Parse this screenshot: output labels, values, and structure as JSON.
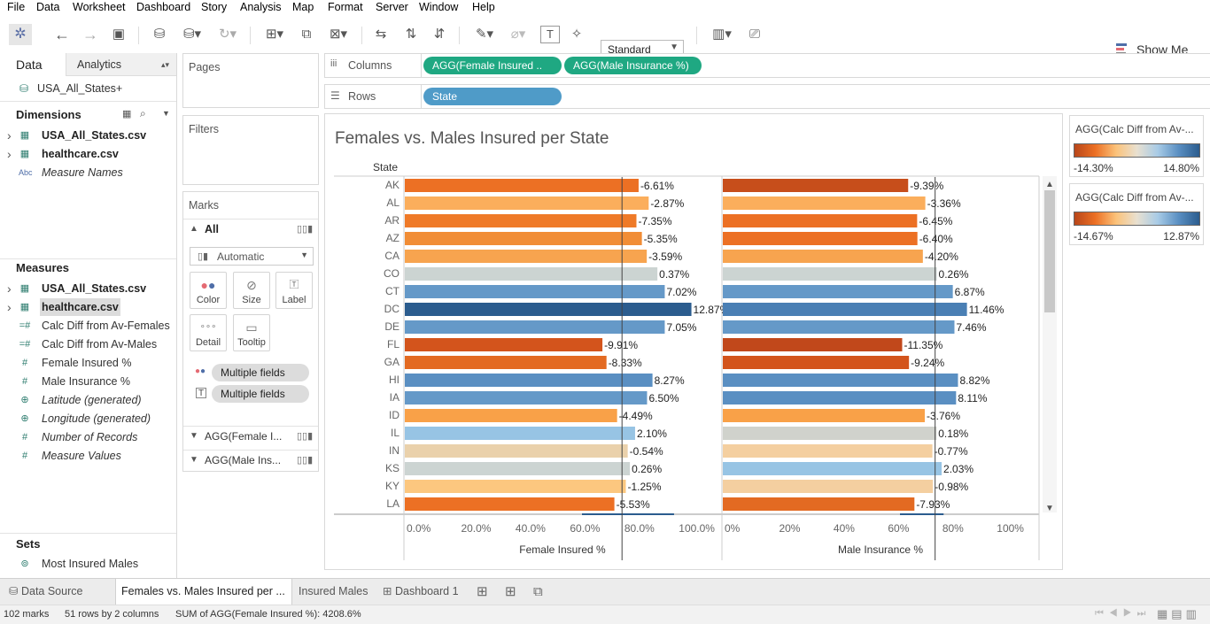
{
  "menu": [
    "File",
    "Data",
    "Worksheet",
    "Dashboard",
    "Story",
    "Analysis",
    "Map",
    "Format",
    "Server",
    "Window",
    "Help"
  ],
  "toolbar": {
    "fit_mode": "Standard",
    "show_me": "Show Me"
  },
  "sidebar": {
    "tab_data": "Data",
    "tab_analytics": "Analytics",
    "datasource": "USA_All_States+",
    "dimensions_title": "Dimensions",
    "dimensions": [
      {
        "label": "USA_All_States.csv",
        "icon": "table-icon",
        "bold": true
      },
      {
        "label": "healthcare.csv",
        "icon": "table-icon",
        "bold": true
      },
      {
        "label": "Measure Names",
        "icon": "abc-icon",
        "italic": true
      }
    ],
    "measures_title": "Measures",
    "measures": [
      {
        "label": "USA_All_States.csv",
        "icon": "table-icon",
        "bold": true
      },
      {
        "label": "healthcare.csv",
        "icon": "table-icon",
        "bold": true,
        "highlight": true
      },
      {
        "label": "Calc Diff from Av-Females",
        "icon": "calc-measure-icon"
      },
      {
        "label": "Calc Diff from Av-Males",
        "icon": "calc-measure-icon"
      },
      {
        "label": "Female Insured %",
        "icon": "measure-icon"
      },
      {
        "label": "Male Insurance %",
        "icon": "measure-icon"
      },
      {
        "label": "Latitude (generated)",
        "icon": "globe-icon",
        "italic": true
      },
      {
        "label": "Longitude (generated)",
        "icon": "globe-icon",
        "italic": true
      },
      {
        "label": "Number of Records",
        "icon": "measure-icon",
        "italic": true
      },
      {
        "label": "Measure Values",
        "icon": "measure-icon",
        "italic": true
      }
    ],
    "sets_title": "Sets",
    "sets": [
      {
        "label": "Most Insured Males",
        "icon": "set-icon"
      }
    ]
  },
  "pages_title": "Pages",
  "filters_title": "Filters",
  "marks": {
    "title": "Marks",
    "all_label": "All",
    "mark_type": "Automatic",
    "buttons": [
      "Color",
      "Size",
      "Label",
      "Detail",
      "Tooltip"
    ],
    "pills": [
      "Multiple fields",
      "Multiple fields"
    ],
    "sub_cards": [
      "AGG(Female I...",
      "AGG(Male Ins..."
    ]
  },
  "shelves": {
    "columns_label": "Columns",
    "rows_label": "Rows",
    "columns": [
      "AGG(Female Insured ..",
      "AGG(Male Insurance %)"
    ],
    "rows": [
      "State"
    ]
  },
  "legends": [
    {
      "title": "AGG(Calc Diff from Av-...",
      "min": "-14.30%",
      "max": "14.80%"
    },
    {
      "title": "AGG(Calc Diff from Av-...",
      "min": "-14.67%",
      "max": "12.87%"
    }
  ],
  "chart_data": {
    "type": "bar",
    "title": "Females vs. Males Insured per State",
    "row_header": "State",
    "categories": [
      "AK",
      "AL",
      "AR",
      "AZ",
      "CA",
      "CO",
      "CT",
      "DC",
      "DE",
      "FL",
      "GA",
      "HI",
      "IA",
      "ID",
      "IL",
      "IN",
      "KS",
      "KY",
      "LA"
    ],
    "series": [
      {
        "name": "Female Insured %",
        "values": [
          85.9,
          89.6,
          85.1,
          87.1,
          88.9,
          92.8,
          95.5,
          105.3,
          95.5,
          72.6,
          74.1,
          91.0,
          89.0,
          78.0,
          84.6,
          81.9,
          82.7,
          81.2,
          77.0
        ],
        "labels": [
          "-6.61%",
          "-2.87%",
          "-7.35%",
          "-5.35%",
          "-3.59%",
          "0.37%",
          "7.02%",
          "12.87%",
          "7.05%",
          "-9.91%",
          "-8.33%",
          "8.27%",
          "6.50%",
          "-4.49%",
          "2.10%",
          "-0.54%",
          "0.26%",
          "-1.25%",
          "-5.53%"
        ],
        "colors": [
          "#ec7024",
          "#fbae5c",
          "#ef7a28",
          "#f18d36",
          "#f7a44f",
          "#ccd4d2",
          "#6599c8",
          "#2b5c8e",
          "#6599c8",
          "#d3541c",
          "#e36a22",
          "#5a8fc2",
          "#6599c8",
          "#f9a148",
          "#97c4e4",
          "#ead1ab",
          "#ccd4d2",
          "#fcc77f",
          "#ec7024"
        ]
      },
      {
        "name": "Male Insurance %",
        "values": [
          68.1,
          74.4,
          71.4,
          71.5,
          73.5,
          78.6,
          84.5,
          89.7,
          85.1,
          65.9,
          68.4,
          86.4,
          85.7,
          74.2,
          78.5,
          77.0,
          80.4,
          77.2,
          70.4
        ],
        "labels": [
          "-9.39%",
          "-3.36%",
          "-6.45%",
          "-6.40%",
          "-4.20%",
          "0.26%",
          "6.87%",
          "11.46%",
          "7.46%",
          "-11.35%",
          "-9.24%",
          "8.82%",
          "8.11%",
          "-3.76%",
          "0.18%",
          "-0.77%",
          "2.03%",
          "-0.98%",
          "-7.93%"
        ],
        "colors": [
          "#c74e1b",
          "#fbae5c",
          "#ec7024",
          "#ec7024",
          "#f7a44f",
          "#ccd4d2",
          "#6599c8",
          "#4a7fb4",
          "#6599c8",
          "#c1481b",
          "#d3541c",
          "#5a8fc2",
          "#5a8fc2",
          "#f9a148",
          "#d0d2cc",
          "#f4cfa0",
          "#97c4e4",
          "#f4cfa0",
          "#e36a22"
        ]
      }
    ],
    "axes": [
      {
        "label": "Female Insured %",
        "ticks": [
          "0.0%",
          "20.0%",
          "40.0%",
          "60.0%",
          "80.0%",
          "100.0%"
        ],
        "range": [
          0,
          110
        ],
        "reference": 79.8
      },
      {
        "label": "Male Insurance %",
        "ticks": [
          "0%",
          "20%",
          "40%",
          "60%",
          "80%",
          "100%"
        ],
        "range": [
          0,
          110
        ],
        "reference": 78.0
      }
    ]
  },
  "sheet_tabs": [
    "Data Source",
    "Females vs. Males Insured per ...",
    "Insured Males",
    "Dashboard 1"
  ],
  "status": {
    "marks": "102 marks",
    "rows_cols": "51 rows by 2 columns",
    "sum": "SUM of AGG(Female Insured %): 4208.6%"
  }
}
